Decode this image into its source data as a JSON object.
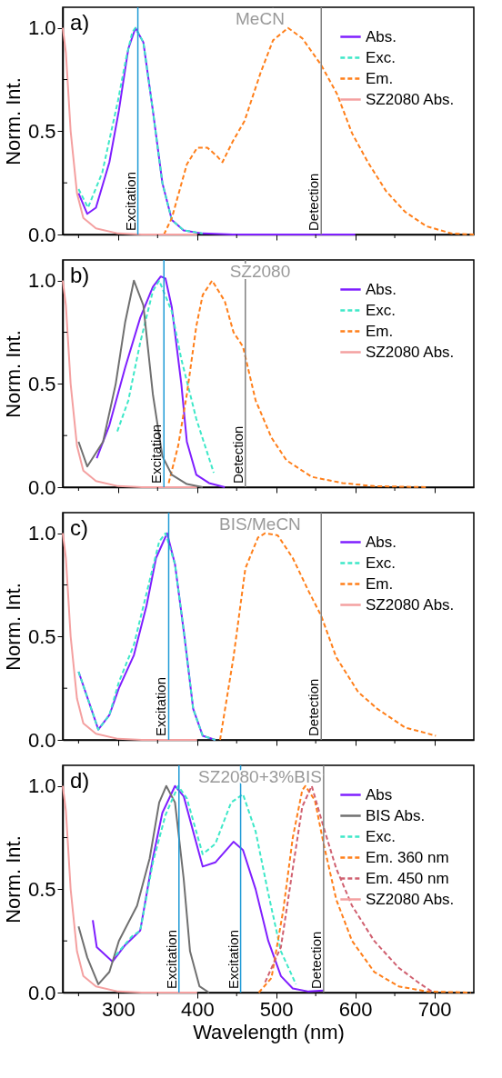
{
  "chart_data": [
    {
      "type": "line",
      "title": "MeCN",
      "annotations": [
        "a)"
      ],
      "ylabel": "Norm. Int.",
      "xlim": [
        230,
        750
      ],
      "ylim": [
        0,
        1.1
      ],
      "tick_labels": "y",
      "legend": "top right",
      "grid": false,
      "xticks": [
        {
          "value": 250,
          "label": null
        },
        300,
        {
          "value": 350,
          "label": null
        },
        400,
        {
          "value": 450,
          "label": null
        },
        500,
        {
          "value": 550,
          "label": null
        },
        600,
        {
          "value": 650,
          "label": null
        },
        700
      ],
      "yticks": [
        {
          "value": 0,
          "label": "0.0"
        },
        {
          "value": 0.25,
          "label": null
        },
        {
          "value": 0.5,
          "label": "0.5"
        },
        {
          "value": 0.75,
          "label": null
        },
        {
          "value": 1,
          "label": "1.0"
        }
      ],
      "ref_lines": [
        {
          "axis": "x",
          "value": 325,
          "label": "Excitation",
          "color": "#1e9ad6"
        },
        {
          "axis": "x",
          "value": 557,
          "label": "Detection",
          "color": "#808080"
        }
      ],
      "series": [
        {
          "name": "Abs.",
          "color": "#7f1fff",
          "line_style": "solid",
          "x": [
            250,
            261,
            272,
            289,
            301,
            313,
            322,
            332,
            344,
            356,
            368,
            383,
            407,
            446,
            600
          ],
          "values": [
            0.2,
            0.1,
            0.13,
            0.35,
            0.6,
            0.9,
            1.0,
            0.93,
            0.6,
            0.25,
            0.07,
            0.02,
            0.005,
            0,
            0
          ]
        },
        {
          "name": "Exc.",
          "color": "#3ee8c8",
          "line_style": "dashed",
          "x": [
            250,
            262,
            280,
            300,
            310,
            318,
            322,
            332,
            344,
            356,
            368,
            383,
            407
          ],
          "values": [
            0.22,
            0.13,
            0.3,
            0.65,
            0.85,
            0.98,
            1.0,
            0.93,
            0.6,
            0.25,
            0.07,
            0.02,
            0.005
          ]
        },
        {
          "name": "Em.",
          "color": "#ff7f1a",
          "line_style": "dashed",
          "x": [
            358,
            368,
            387,
            400,
            413,
            425,
            432,
            445,
            460,
            480,
            496,
            515,
            533,
            557,
            577,
            596,
            616,
            639,
            663,
            690,
            722,
            750
          ],
          "values": [
            0,
            0.08,
            0.34,
            0.42,
            0.42,
            0.38,
            0.35,
            0.45,
            0.55,
            0.78,
            0.94,
            1.0,
            0.95,
            0.82,
            0.68,
            0.49,
            0.35,
            0.21,
            0.11,
            0.04,
            0.005,
            0
          ]
        },
        {
          "name": "SZ2080 Abs.",
          "color": "#f4a0a0",
          "line_style": "solid",
          "x": [
            230,
            234,
            240,
            248,
            256,
            272,
            300,
            330,
            400
          ],
          "values": [
            1.0,
            0.88,
            0.5,
            0.2,
            0.08,
            0.03,
            0.005,
            0,
            0
          ]
        }
      ]
    },
    {
      "type": "line",
      "title": "SZ2080",
      "annotations": [
        "b)"
      ],
      "ylabel": "Norm. Int.",
      "xlim": [
        230,
        750
      ],
      "ylim": [
        0,
        1.1
      ],
      "tick_labels": "y",
      "legend": "top right",
      "grid": false,
      "xticks": [
        {
          "value": 250,
          "label": null
        },
        300,
        {
          "value": 350,
          "label": null
        },
        400,
        {
          "value": 450,
          "label": null
        },
        500,
        {
          "value": 550,
          "label": null
        },
        600,
        {
          "value": 650,
          "label": null
        },
        700
      ],
      "yticks": [
        {
          "value": 0,
          "label": "0.0"
        },
        {
          "value": 0.25,
          "label": null
        },
        {
          "value": 0.5,
          "label": "0.5"
        },
        {
          "value": 0.75,
          "label": null
        },
        {
          "value": 1,
          "label": "1.0"
        }
      ],
      "ref_lines": [
        {
          "axis": "x",
          "value": 358,
          "label": "Excitation",
          "color": "#1e9ad6"
        },
        {
          "axis": "x",
          "value": 461,
          "label": "Detection",
          "color": "#808080"
        }
      ],
      "series": [
        {
          "name": "Abs.",
          "color": "#7f1fff",
          "line_style": "solid",
          "x": [
            273,
            289,
            309,
            328,
            344,
            354,
            360,
            368,
            380,
            387,
            399,
            415,
            435
          ],
          "values": [
            0.14,
            0.3,
            0.58,
            0.82,
            0.97,
            1.02,
            1.01,
            0.87,
            0.5,
            0.22,
            0.06,
            0.02,
            0
          ]
        },
        {
          "name": "Exc.",
          "color": "#3ee8c8",
          "line_style": "dashed",
          "x": [
            299,
            313,
            328,
            344,
            352,
            368,
            380,
            399,
            421
          ],
          "values": [
            0.27,
            0.42,
            0.7,
            0.95,
            1.0,
            0.85,
            0.62,
            0.33,
            0.07
          ]
        },
        {
          "name": "Em.",
          "color": "#ff7f1a",
          "line_style": "dashed",
          "x": [
            364,
            376,
            387,
            399,
            407,
            419,
            435,
            446,
            458,
            474,
            494,
            513,
            545,
            584,
            624,
            691
          ],
          "values": [
            0.02,
            0.2,
            0.45,
            0.78,
            0.93,
            1.0,
            0.9,
            0.75,
            0.68,
            0.42,
            0.24,
            0.13,
            0.05,
            0.02,
            0.005,
            0
          ]
        },
        {
          "color": "#707070",
          "line_style": "solid",
          "x": [
            250,
            261,
            281,
            297,
            309,
            320,
            332,
            344,
            356,
            368,
            387,
            407
          ],
          "values": [
            0.22,
            0.1,
            0.22,
            0.5,
            0.8,
            1.0,
            0.88,
            0.45,
            0.15,
            0.06,
            0.015,
            0
          ]
        },
        {
          "name": "SZ2080 Abs.",
          "color": "#f4a0a0",
          "line_style": "solid",
          "x": [
            230,
            234,
            240,
            248,
            256,
            272,
            300,
            330,
            400
          ],
          "values": [
            1.0,
            0.88,
            0.5,
            0.2,
            0.08,
            0.03,
            0.005,
            0,
            0
          ]
        }
      ]
    },
    {
      "type": "line",
      "title": "BIS/MeCN",
      "annotations": [
        "c)"
      ],
      "ylabel": "Norm. Int.",
      "xlim": [
        230,
        750
      ],
      "ylim": [
        0,
        1.1
      ],
      "tick_labels": "y",
      "legend": "top right",
      "grid": false,
      "xticks": [
        {
          "value": 250,
          "label": null
        },
        300,
        {
          "value": 350,
          "label": null
        },
        400,
        {
          "value": 450,
          "label": null
        },
        500,
        {
          "value": 550,
          "label": null
        },
        600,
        {
          "value": 650,
          "label": null
        },
        700
      ],
      "yticks": [
        {
          "value": 0,
          "label": "0.0"
        },
        {
          "value": 0.25,
          "label": null
        },
        {
          "value": 0.5,
          "label": "0.5"
        },
        {
          "value": 0.75,
          "label": null
        },
        {
          "value": 1,
          "label": "1.0"
        }
      ],
      "ref_lines": [
        {
          "axis": "x",
          "value": 364,
          "label": "Excitation",
          "color": "#1e9ad6"
        },
        {
          "axis": "x",
          "value": 557,
          "label": "Detection",
          "color": "#808080"
        }
      ],
      "series": [
        {
          "name": "Abs.",
          "color": "#7f1fff",
          "line_style": "solid",
          "x": [
            250,
            275,
            289,
            301,
            320,
            336,
            348,
            362,
            372,
            384,
            395,
            407,
            423
          ],
          "values": [
            0.33,
            0.05,
            0.12,
            0.25,
            0.41,
            0.65,
            0.88,
            1.0,
            0.85,
            0.5,
            0.15,
            0.02,
            0
          ]
        },
        {
          "name": "Exc.",
          "color": "#3ee8c8",
          "line_style": "dashed",
          "x": [
            250,
            275,
            289,
            301,
            320,
            336,
            352,
            360,
            372,
            384,
            395,
            407,
            423
          ],
          "values": [
            0.33,
            0.05,
            0.12,
            0.28,
            0.46,
            0.71,
            0.96,
            1.0,
            0.85,
            0.5,
            0.15,
            0.02,
            0
          ]
        },
        {
          "name": "Em.",
          "color": "#ff7f1a",
          "line_style": "dashed",
          "x": [
            429,
            446,
            461,
            477,
            486,
            502,
            521,
            541,
            557,
            576,
            604,
            628,
            663,
            702
          ],
          "values": [
            0,
            0.4,
            0.83,
            0.98,
            1.0,
            0.99,
            0.88,
            0.72,
            0.6,
            0.4,
            0.23,
            0.15,
            0.06,
            0.02
          ]
        },
        {
          "name": "SZ2080 Abs.",
          "color": "#f4a0a0",
          "line_style": "solid",
          "x": [
            230,
            234,
            240,
            248,
            256,
            272,
            300,
            330,
            400
          ],
          "values": [
            1.0,
            0.88,
            0.5,
            0.2,
            0.08,
            0.03,
            0.005,
            0,
            0
          ]
        }
      ]
    },
    {
      "type": "line",
      "title": "SZ2080+3%BIS",
      "annotations": [
        "d)"
      ],
      "xlabel": "Wavelength (nm)",
      "ylabel": "Norm. Int.",
      "xlim": [
        230,
        750
      ],
      "ylim": [
        0,
        1.1
      ],
      "legend": "top right",
      "grid": false,
      "xticks": [
        {
          "value": 250,
          "label": null
        },
        300,
        {
          "value": 350,
          "label": null
        },
        400,
        {
          "value": 450,
          "label": null
        },
        500,
        {
          "value": 550,
          "label": null
        },
        600,
        {
          "value": 650,
          "label": null
        },
        700
      ],
      "yticks": [
        {
          "value": 0,
          "label": "0.0"
        },
        {
          "value": 0.25,
          "label": null
        },
        {
          "value": 0.5,
          "label": "0.5"
        },
        {
          "value": 0.75,
          "label": null
        },
        {
          "value": 1,
          "label": "1.0"
        }
      ],
      "ref_lines": [
        {
          "axis": "x",
          "value": 377,
          "label": "Excitation",
          "color": "#1e9ad6"
        },
        {
          "axis": "x",
          "value": 455,
          "label": "Excitation",
          "color": "#1e9ad6"
        },
        {
          "axis": "x",
          "value": 560,
          "label": "Detection",
          "color": "#808080"
        }
      ],
      "series": [
        {
          "name": "Abs",
          "color": "#7f1fff",
          "line_style": "solid",
          "x": [
            268,
            273,
            293,
            309,
            328,
            344,
            356,
            372,
            383,
            395,
            407,
            423,
            446,
            458,
            474,
            490,
            506,
            521,
            541,
            560
          ],
          "values": [
            0.35,
            0.22,
            0.15,
            0.23,
            0.3,
            0.65,
            0.87,
            1.0,
            0.95,
            0.78,
            0.61,
            0.63,
            0.73,
            0.69,
            0.5,
            0.25,
            0.08,
            0.02,
            0.005,
            0.01
          ]
        },
        {
          "name": "BIS Abs.",
          "color": "#707070",
          "line_style": "solid",
          "x": [
            250,
            261,
            275,
            289,
            301,
            324,
            340,
            352,
            361,
            372,
            383,
            391,
            403,
            415
          ],
          "values": [
            0.32,
            0.17,
            0.04,
            0.1,
            0.25,
            0.42,
            0.65,
            0.92,
            1.0,
            0.92,
            0.55,
            0.2,
            0.03,
            0
          ]
        },
        {
          "name": "Exc.",
          "color": "#3ee8c8",
          "line_style": "dashed",
          "x": [
            297,
            317,
            328,
            344,
            360,
            376,
            387,
            407,
            423,
            443,
            458,
            474,
            490,
            506,
            525
          ],
          "values": [
            0.18,
            0.27,
            0.3,
            0.63,
            0.86,
            1.0,
            0.94,
            0.67,
            0.72,
            0.92,
            0.96,
            0.78,
            0.48,
            0.2,
            0.04
          ]
        },
        {
          "name": "Em. 360 nm",
          "color": "#ff7f1a",
          "line_style": "dashed",
          "x": [
            478,
            494,
            509,
            521,
            533,
            537,
            549,
            560,
            576,
            596,
            624,
            655,
            691,
            746
          ],
          "values": [
            0,
            0.07,
            0.4,
            0.75,
            0.98,
            1.0,
            0.93,
            0.72,
            0.45,
            0.25,
            0.1,
            0.03,
            0.005,
            0
          ]
        },
        {
          "name": "Em. 450 nm",
          "color": "#d06070",
          "line_style": "dashed",
          "x": [
            486,
            506,
            521,
            533,
            545,
            560,
            576,
            596,
            624,
            655,
            683,
            699
          ],
          "values": [
            0.05,
            0.22,
            0.6,
            0.9,
            1.0,
            0.8,
            0.6,
            0.42,
            0.25,
            0.12,
            0.04,
            0
          ]
        },
        {
          "name": "SZ2080 Abs.",
          "color": "#f4a0a0",
          "line_style": "solid",
          "x": [
            230,
            234,
            240,
            248,
            256,
            272,
            300,
            330,
            400
          ],
          "values": [
            1.0,
            0.88,
            0.5,
            0.2,
            0.08,
            0.03,
            0.005,
            0,
            0
          ]
        }
      ]
    }
  ]
}
